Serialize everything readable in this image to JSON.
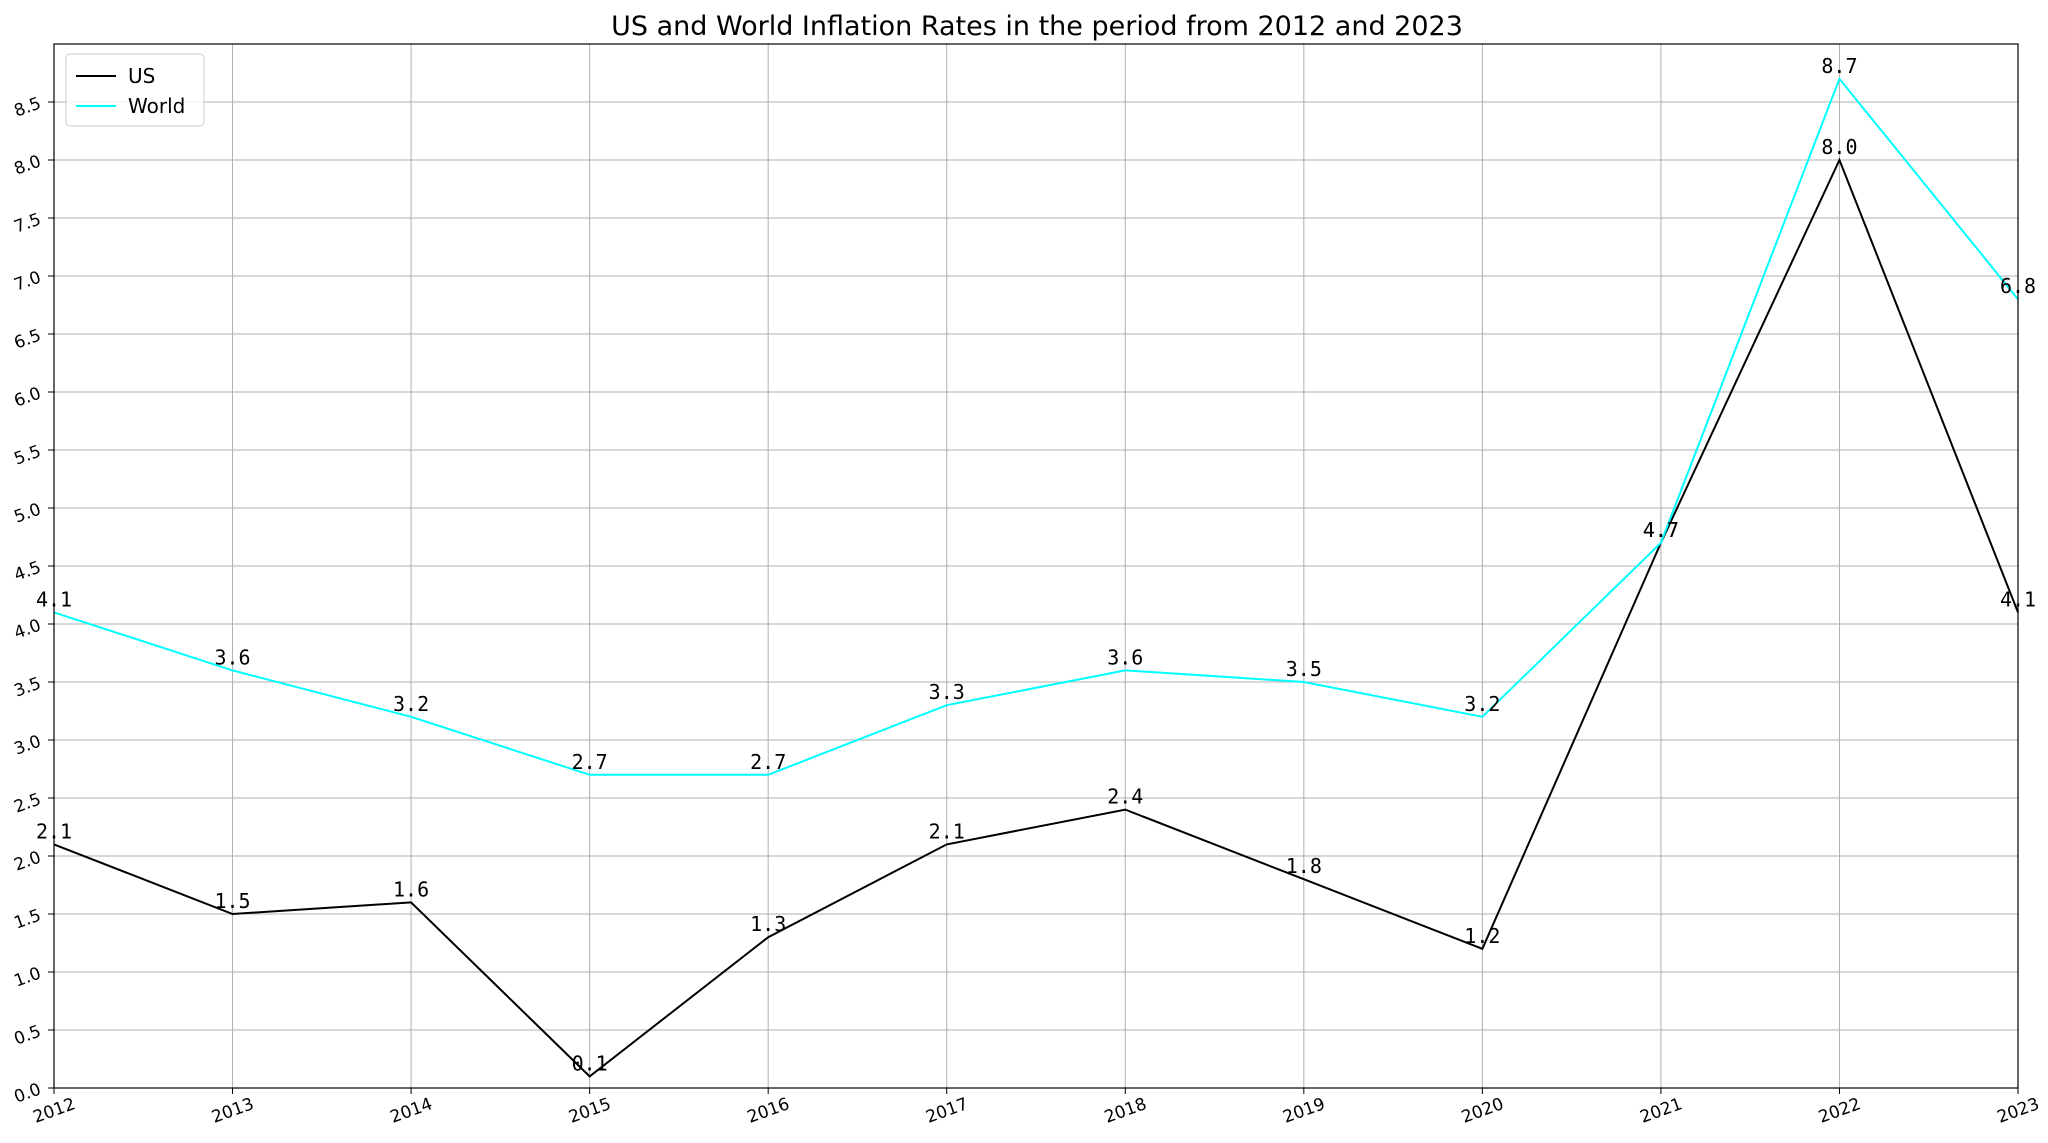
{
  "chart_data": {
    "type": "line",
    "title": "US and World Inflation Rates in the period from 2012 and 2023",
    "xlabel": "",
    "ylabel": "",
    "x": [
      "2012",
      "2013",
      "2014",
      "2015",
      "2016",
      "2017",
      "2018",
      "2019",
      "2020",
      "2021",
      "2022",
      "2023"
    ],
    "series": [
      {
        "name": "US",
        "color": "#000000",
        "values": [
          2.1,
          1.5,
          1.6,
          0.1,
          1.3,
          2.1,
          2.4,
          1.8,
          1.2,
          4.7,
          8.0,
          4.1
        ]
      },
      {
        "name": "World",
        "color": "#00ffff",
        "values": [
          4.1,
          3.6,
          3.2,
          2.7,
          2.7,
          3.3,
          3.6,
          3.5,
          3.2,
          4.7,
          8.7,
          6.8
        ]
      }
    ],
    "ylim": [
      0.0,
      9.0
    ],
    "yticks": [
      "0.0",
      "0.5",
      "1.0",
      "1.5",
      "2.0",
      "2.5",
      "3.0",
      "3.5",
      "4.0",
      "4.5",
      "5.0",
      "5.5",
      "6.0",
      "6.5",
      "7.0",
      "7.5",
      "8.0",
      "8.5"
    ],
    "grid": true,
    "legend_position": "top-left",
    "data_labels": true
  }
}
